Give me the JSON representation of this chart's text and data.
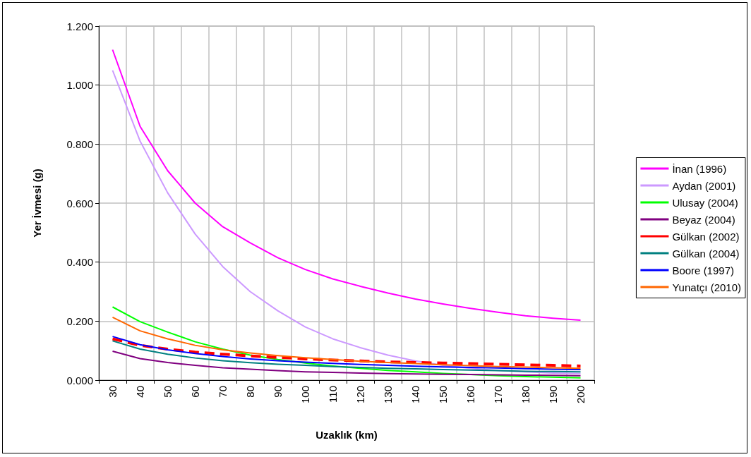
{
  "chart_data": {
    "type": "line",
    "xlabel": "Uzaklık (km)",
    "ylabel": "Yer İvmesi (g)",
    "categories": [
      "30",
      "40",
      "50",
      "60",
      "70",
      "80",
      "90",
      "100",
      "110",
      "120",
      "130",
      "140",
      "150",
      "160",
      "170",
      "180",
      "190",
      "200"
    ],
    "ylim": [
      0,
      1.2
    ],
    "yticks": [
      {
        "value": 0,
        "label": "0.000"
      },
      {
        "value": 0.2,
        "label": "0.200"
      },
      {
        "value": 0.4,
        "label": "0.400"
      },
      {
        "value": 0.6,
        "label": "0.600"
      },
      {
        "value": 0.8,
        "label": "0.800"
      },
      {
        "value": 1.0,
        "label": "1.000"
      },
      {
        "value": 1.2,
        "label": "1.200"
      }
    ],
    "grid": true,
    "legend": "right",
    "marker": "none",
    "line_style": "solid",
    "series": [
      {
        "name": "İnan (1996)",
        "color": "#ff00ff",
        "values": [
          1.12,
          0.86,
          0.71,
          0.6,
          0.52,
          0.465,
          0.415,
          0.375,
          0.343,
          0.318,
          0.295,
          0.275,
          0.258,
          0.243,
          0.23,
          0.218,
          0.21,
          0.203
        ]
      },
      {
        "name": "Aydan (2001)",
        "color": "#cc99ff",
        "values": [
          1.05,
          0.81,
          0.635,
          0.495,
          0.385,
          0.3,
          0.235,
          0.18,
          0.14,
          0.11,
          0.085,
          0.065,
          0.05,
          0.04,
          0.033,
          0.028,
          0.024,
          0.022
        ]
      },
      {
        "name": "Ulusay (2004)",
        "color": "#00ff00",
        "values": [
          0.248,
          0.198,
          0.163,
          0.13,
          0.105,
          0.085,
          0.07,
          0.058,
          0.048,
          0.04,
          0.033,
          0.028,
          0.023,
          0.019,
          0.015,
          0.012,
          0.01,
          0.008
        ]
      },
      {
        "name": "Beyaz (2004)",
        "color": "#800080",
        "values": [
          0.098,
          0.073,
          0.06,
          0.05,
          0.042,
          0.037,
          0.032,
          0.028,
          0.026,
          0.024,
          0.022,
          0.021,
          0.02,
          0.019,
          0.018,
          0.017,
          0.016,
          0.015
        ]
      },
      {
        "name": "Gülkan (2002)",
        "color": "#ff0000",
        "line_style": "dashed",
        "values": [
          0.14,
          0.118,
          0.105,
          0.095,
          0.088,
          0.082,
          0.077,
          0.072,
          0.068,
          0.065,
          0.062,
          0.06,
          0.058,
          0.056,
          0.054,
          0.052,
          0.05,
          0.048
        ]
      },
      {
        "name": "Gülkan (2004)",
        "color": "#008080",
        "values": [
          0.133,
          0.105,
          0.088,
          0.075,
          0.066,
          0.059,
          0.054,
          0.05,
          0.046,
          0.043,
          0.04,
          0.038,
          0.036,
          0.034,
          0.032,
          0.03,
          0.029,
          0.028
        ]
      },
      {
        "name": "Boore (1997)",
        "color": "#0000ff",
        "values": [
          0.148,
          0.12,
          0.103,
          0.09,
          0.08,
          0.072,
          0.066,
          0.061,
          0.057,
          0.053,
          0.05,
          0.047,
          0.045,
          0.043,
          0.041,
          0.039,
          0.037,
          0.036
        ]
      },
      {
        "name": "Yunatçı (2010)",
        "color": "#ff6600",
        "values": [
          0.213,
          0.167,
          0.14,
          0.118,
          0.103,
          0.092,
          0.083,
          0.076,
          0.07,
          0.064,
          0.06,
          0.056,
          0.052,
          0.049,
          0.046,
          0.044,
          0.042,
          0.04
        ]
      }
    ]
  }
}
